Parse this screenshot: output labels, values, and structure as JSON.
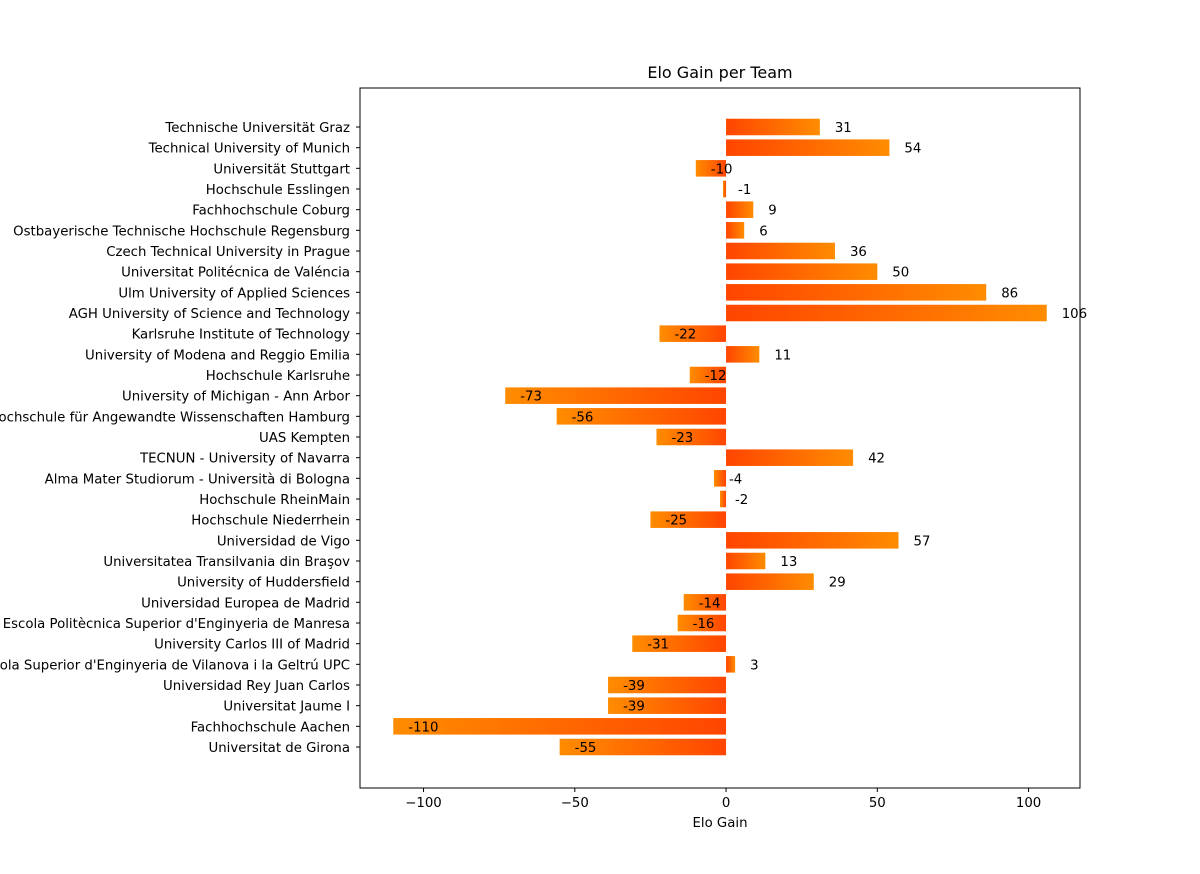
{
  "chart_data": {
    "type": "bar",
    "orientation": "horizontal",
    "title": "Elo Gain per Team",
    "xlabel": "Elo Gain",
    "ylabel": "",
    "xlim": [
      -121,
      117
    ],
    "xticks": [
      -100,
      -50,
      0,
      50,
      100
    ],
    "xtick_labels": [
      "−100",
      "−50",
      "0",
      "50",
      "100"
    ],
    "grid": false,
    "categories": [
      "Technische Universität Graz",
      "Technical University of Munich",
      "Universität Stuttgart",
      "Hochschule Esslingen",
      "Fachhochschule Coburg",
      "Ostbayerische Technische Hochschule Regensburg",
      "Czech Technical University in Prague",
      "Universitat Politécnica de Valéncia",
      "Ulm University of Applied Sciences",
      "AGH University of Science and Technology",
      "Karlsruhe Institute of Technology",
      "University of Modena and Reggio Emilia",
      "Hochschule Karlsruhe",
      "University of Michigan - Ann Arbor",
      "Hochschule für Angewandte Wissenschaften Hamburg",
      "UAS Kempten",
      "TECNUN - University of Navarra",
      "Alma Mater Studiorum - Università di Bologna",
      "Hochschule RheinMain",
      "Hochschule Niederrhein",
      "Universidad de Vigo",
      "Universitatea Transilvania din Braşov",
      "University of Huddersfield",
      "Universidad Europea de Madrid",
      "Escola Politècnica Superior d'Enginyeria de Manresa",
      "University Carlos III of Madrid",
      "Escola Superior d'Enginyeria de Vilanova i la Geltrú UPC",
      "Universidad Rey Juan Carlos",
      "Universitat Jaume I",
      "Fachhochschule Aachen",
      "Universitat de Girona"
    ],
    "values": [
      31,
      54,
      -10,
      -1,
      9,
      6,
      36,
      50,
      86,
      106,
      -22,
      11,
      -12,
      -73,
      -56,
      -23,
      42,
      -4,
      -2,
      -25,
      57,
      13,
      29,
      -14,
      -16,
      -31,
      3,
      -39,
      -39,
      -110,
      -55
    ],
    "value_labels": [
      "31",
      "54",
      "-10",
      "-1",
      "9",
      "6",
      "36",
      "50",
      "86",
      "106",
      "-22",
      "11",
      "-12",
      "-73",
      "-56",
      "-23",
      "42",
      "-4",
      "-2",
      "-25",
      "57",
      "13",
      "29",
      "-14",
      "-16",
      "-31",
      "3",
      "-39",
      "-39",
      "-110",
      "-55"
    ],
    "colors": {
      "gradient_start": "#ff4500",
      "gradient_end": "#ff8c00",
      "axis": "#000000"
    }
  }
}
